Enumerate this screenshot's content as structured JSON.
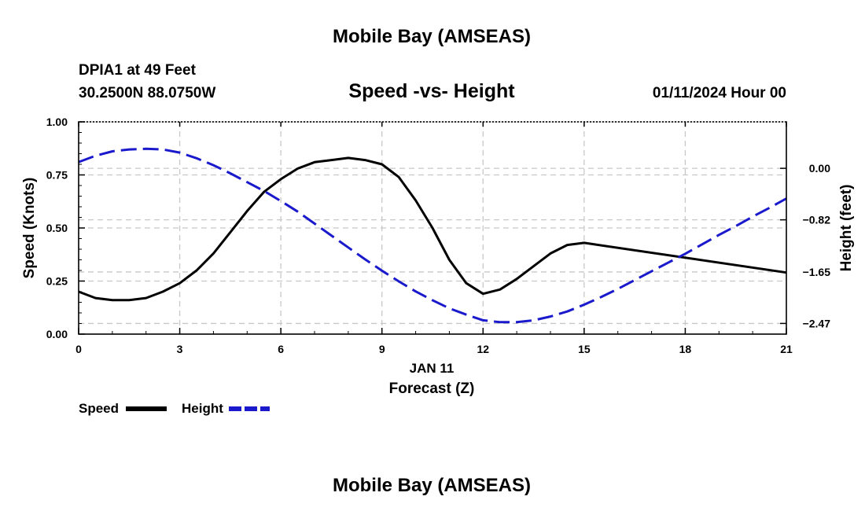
{
  "header": {
    "title": "Mobile Bay (AMSEAS)",
    "station": "DPIA1 at 49 Feet",
    "location": "30.2500N  88.0750W",
    "subtitle": "Speed -vs- Height",
    "datetime": "01/11/2024 Hour 00"
  },
  "footer": {
    "title": "Mobile Bay (AMSEAS)"
  },
  "colors": {
    "speed": "#000000",
    "height": "#1a1acc",
    "grid": "#c8c8c8"
  },
  "chart_data": {
    "type": "line",
    "title": "Speed -vs- Height",
    "xlabel": "Forecast (Z)",
    "date_label": "JAN 11",
    "ylabel": "Speed (Knots)",
    "y2label": "Height (feet)",
    "xlim": [
      0,
      21
    ],
    "ylim": [
      0,
      1
    ],
    "y2lim": [
      -2.64,
      0.74
    ],
    "grid": true,
    "legend_position": "bottom-left",
    "x_ticks": [
      0,
      3,
      6,
      9,
      12,
      15,
      18,
      21
    ],
    "x_tick_labels": [
      "0",
      "3",
      "6",
      "9",
      "12",
      "15",
      "18",
      "21"
    ],
    "y_ticks": [
      0,
      0.25,
      0.5,
      0.75,
      1.0
    ],
    "y_tick_labels": [
      "0.00",
      "0.25",
      "0.50",
      "0.75",
      "1.00"
    ],
    "y2_ticks": [
      0.0,
      -0.82,
      -1.65,
      -2.47
    ],
    "y2_tick_labels": [
      "0.00",
      "−0.82",
      "−1.65",
      "−2.47"
    ],
    "series": [
      {
        "name": "Speed",
        "axis": "left",
        "style": "solid",
        "x": [
          0,
          0.5,
          1,
          1.5,
          2,
          2.5,
          3,
          3.5,
          4,
          4.5,
          5,
          5.5,
          6,
          6.5,
          7,
          7.5,
          8,
          8.5,
          9,
          9.5,
          10,
          10.5,
          11,
          11.5,
          12,
          12.5,
          13,
          13.5,
          14,
          14.5,
          15,
          21
        ],
        "values": [
          0.2,
          0.17,
          0.16,
          0.16,
          0.17,
          0.2,
          0.24,
          0.3,
          0.38,
          0.48,
          0.58,
          0.67,
          0.73,
          0.78,
          0.81,
          0.82,
          0.83,
          0.82,
          0.8,
          0.74,
          0.63,
          0.5,
          0.35,
          0.24,
          0.19,
          0.21,
          0.26,
          0.32,
          0.38,
          0.42,
          0.43,
          0.29
        ]
      },
      {
        "name": "Height",
        "axis": "right",
        "style": "dashed",
        "x": [
          0,
          0.5,
          1,
          1.5,
          2,
          2.5,
          3,
          3.5,
          4,
          4.5,
          5,
          5.5,
          6,
          6.5,
          7,
          7.5,
          8,
          8.5,
          9,
          9.5,
          10,
          10.5,
          11,
          11.5,
          12,
          12.5,
          13,
          13.5,
          14,
          14.5,
          15,
          15.5,
          16,
          16.5,
          17,
          17.5,
          18,
          18.5,
          19,
          19.5,
          20,
          20.5,
          21
        ],
        "values": [
          0.1,
          0.2,
          0.27,
          0.3,
          0.31,
          0.3,
          0.25,
          0.16,
          0.05,
          -0.08,
          -0.22,
          -0.36,
          -0.52,
          -0.69,
          -0.88,
          -1.07,
          -1.26,
          -1.45,
          -1.63,
          -1.8,
          -1.96,
          -2.1,
          -2.23,
          -2.33,
          -2.42,
          -2.45,
          -2.45,
          -2.42,
          -2.36,
          -2.28,
          -2.17,
          -2.05,
          -1.92,
          -1.78,
          -1.64,
          -1.5,
          -1.36,
          -1.21,
          -1.06,
          -0.92,
          -0.77,
          -0.63,
          -0.48
        ]
      }
    ]
  }
}
